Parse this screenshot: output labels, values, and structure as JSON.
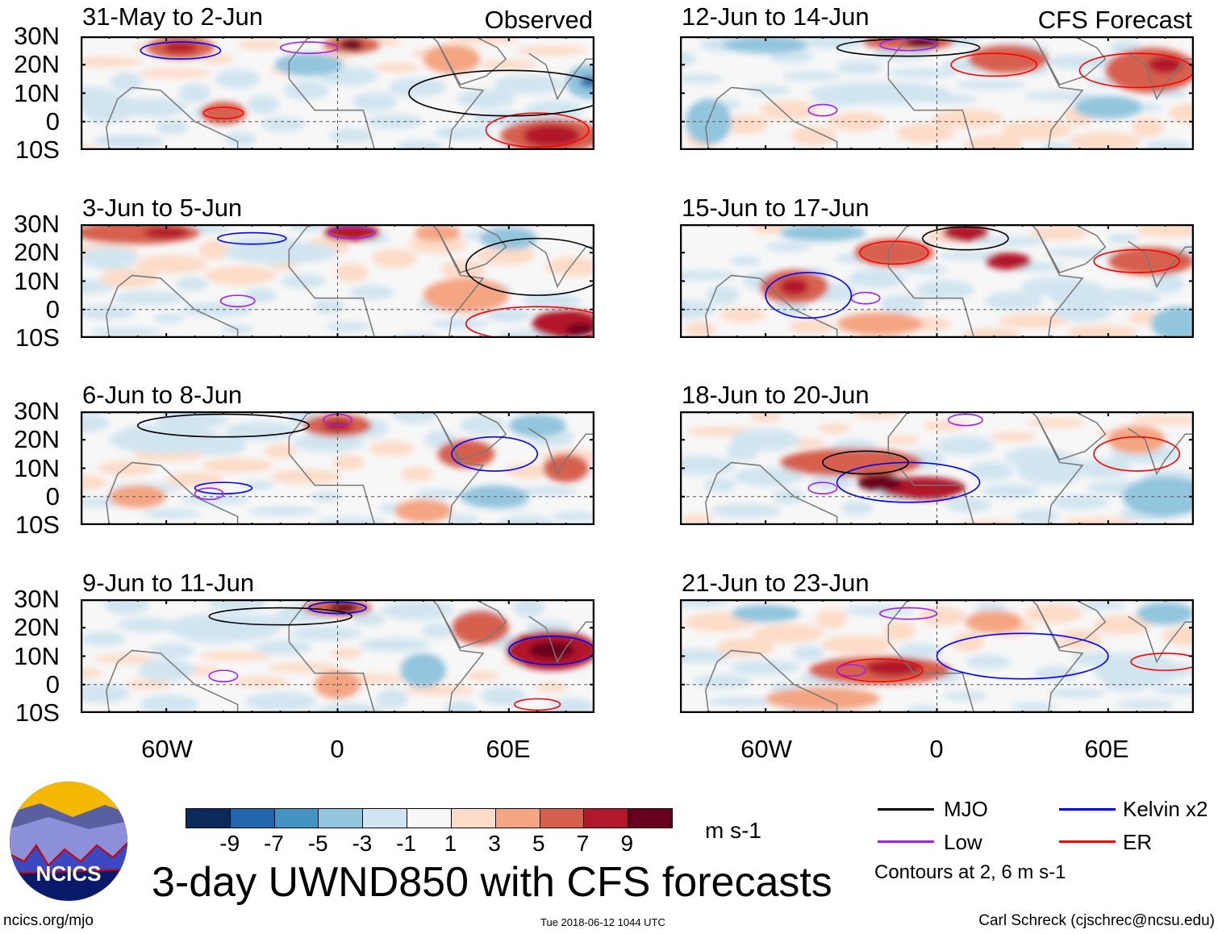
{
  "panels": [
    {
      "title": "31-May to 2-Jun",
      "tag": "Observed"
    },
    {
      "title": "3-Jun to 5-Jun",
      "tag": ""
    },
    {
      "title": "6-Jun to 8-Jun",
      "tag": ""
    },
    {
      "title": "9-Jun to 11-Jun",
      "tag": ""
    },
    {
      "title": "12-Jun to 14-Jun",
      "tag": "CFS Forecast"
    },
    {
      "title": "15-Jun to 17-Jun",
      "tag": ""
    },
    {
      "title": "18-Jun to 20-Jun",
      "tag": ""
    },
    {
      "title": "21-Jun to 23-Jun",
      "tag": ""
    }
  ],
  "lat_labels": [
    "30N",
    "20N",
    "10N",
    "0",
    "10S"
  ],
  "lon_labels": [
    "60W",
    "0",
    "60E"
  ],
  "colorbar": {
    "colors": [
      "#0b2a5b",
      "#2166ac",
      "#4393c3",
      "#92c5de",
      "#d1e5f0",
      "#f7f7f7",
      "#fddbc7",
      "#f4a582",
      "#d6604d",
      "#b2182b",
      "#67001f"
    ],
    "labels": [
      "-9",
      "-7",
      "-5",
      "-3",
      "-1",
      "1",
      "3",
      "5",
      "7",
      "9"
    ],
    "units": "m s-1"
  },
  "legend": {
    "items": [
      {
        "label": "MJO",
        "color": "#000000"
      },
      {
        "label": "Kelvin x2",
        "color": "#0000ff"
      },
      {
        "label": "Low",
        "color": "#a020f0"
      },
      {
        "label": "ER",
        "color": "#ff0000"
      }
    ],
    "note": "Contours at 2, 6 m s-1"
  },
  "logo_text": "NCICS",
  "main_title": "3-day UWND850 with CFS forecasts",
  "footer": {
    "url": "ncics.org/mjo",
    "timestamp": "Tue 2018-06-12 1044 UTC",
    "credit": "Carl Schreck (cjschrec@ncsu.edu)"
  }
}
